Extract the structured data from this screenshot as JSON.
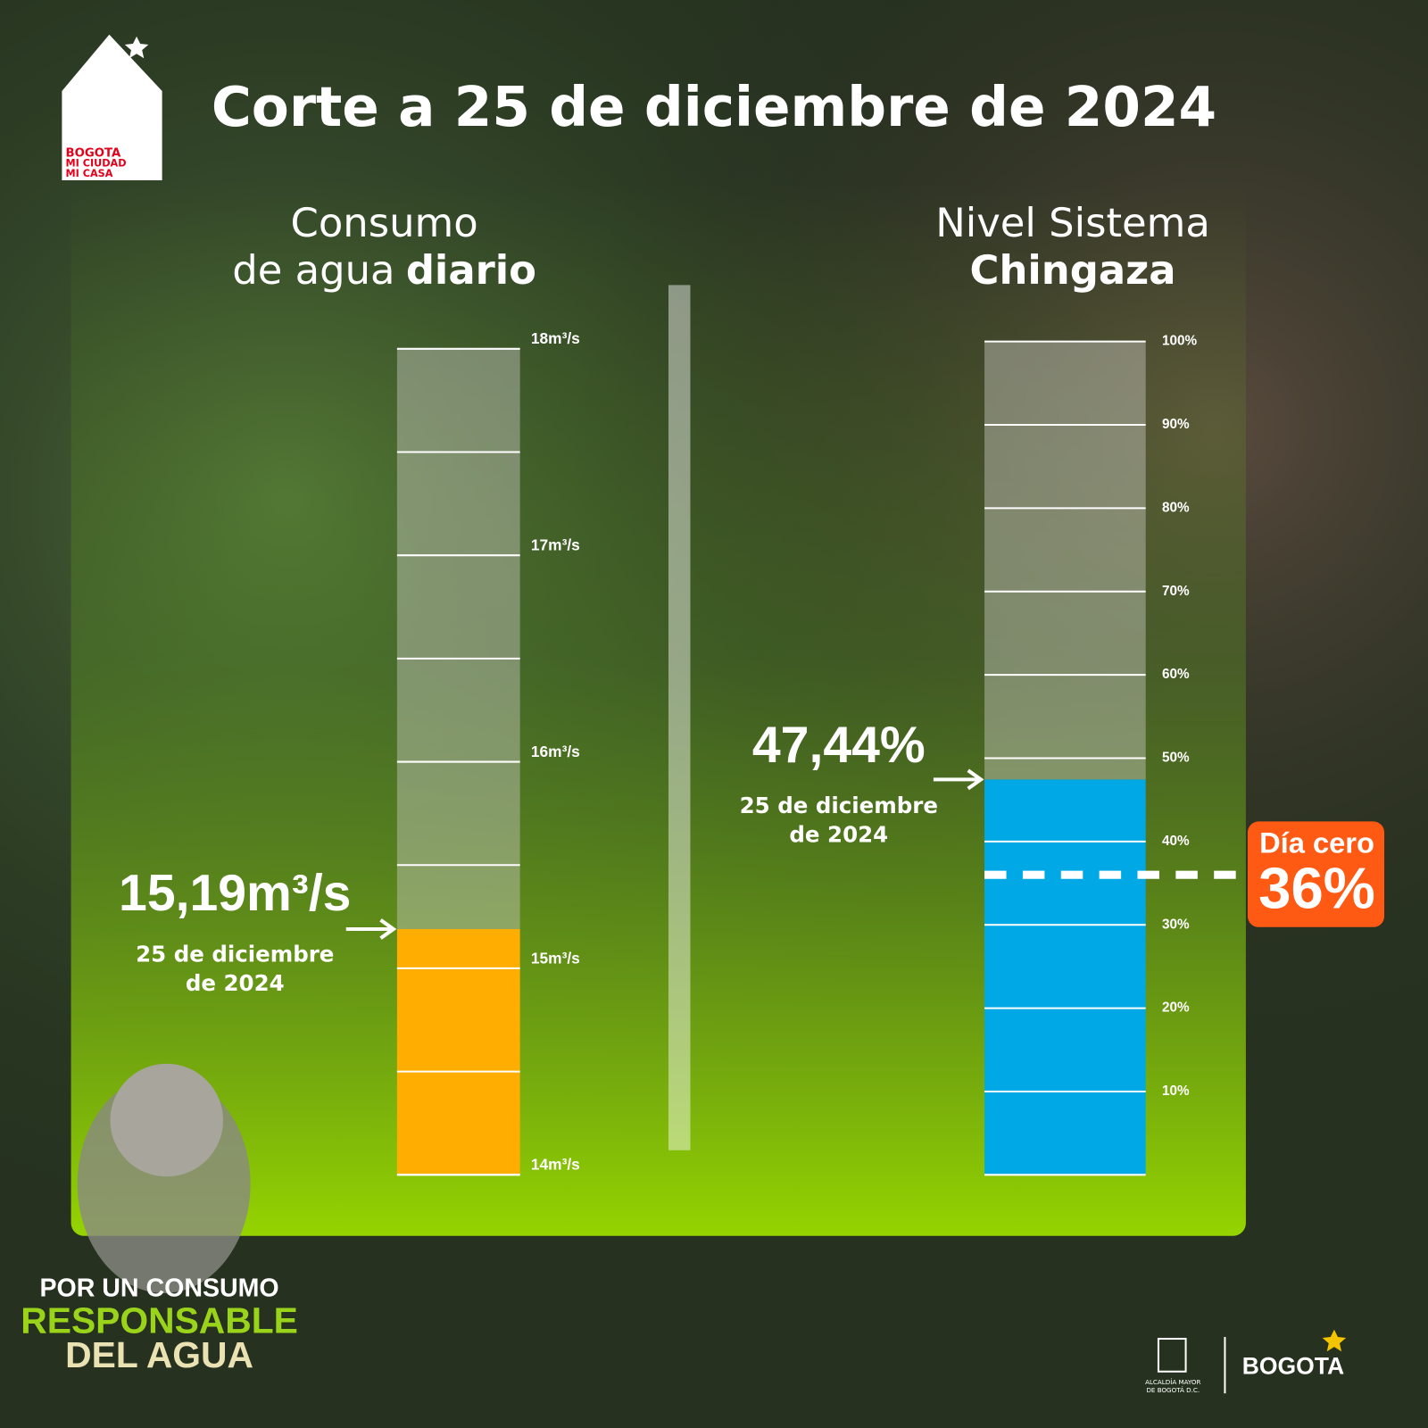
{
  "title": "Corte a 25 de diciembre de 2024",
  "logo": {
    "lines": [
      "BOGOTA",
      "MI CIUDAD",
      "MI CASA"
    ]
  },
  "chart_data": [
    {
      "type": "gauge",
      "title": [
        "Consumo",
        "de agua",
        "diario"
      ],
      "values": [
        15.19
      ],
      "value_labels": [
        "15,19m³/s"
      ],
      "annotation": [
        "25 de diciembre",
        "de 2024"
      ],
      "color": "#ffad00",
      "ylim": [
        14,
        18
      ],
      "yticks": [
        {
          "value": 14,
          "label": "14m³/s"
        },
        {
          "value": 15,
          "label": "15m³/s"
        },
        {
          "value": 16,
          "label": "16m³/s"
        },
        {
          "value": 17,
          "label": "17m³/s"
        },
        {
          "value": 18,
          "label": "18m³/s"
        }
      ],
      "minor_yticks": [
        14.5,
        15.5,
        16.5,
        17.5
      ]
    },
    {
      "type": "gauge",
      "title": [
        "Nivel Sistema",
        "Chingaza"
      ],
      "values": [
        47.44
      ],
      "value_labels": [
        "47,44%"
      ],
      "annotation": [
        "25 de diciembre",
        "de 2024"
      ],
      "color": "#00a9e6",
      "ylim": [
        0,
        100
      ],
      "yticks": [
        {
          "value": 10,
          "label": "10%"
        },
        {
          "value": 20,
          "label": "20%"
        },
        {
          "value": 30,
          "label": "30%"
        },
        {
          "value": 40,
          "label": "40%"
        },
        {
          "value": 50,
          "label": "50%"
        },
        {
          "value": 60,
          "label": "60%"
        },
        {
          "value": 70,
          "label": "70%"
        },
        {
          "value": 80,
          "label": "80%"
        },
        {
          "value": 90,
          "label": "90%"
        },
        {
          "value": 100,
          "label": "100%"
        }
      ],
      "threshold": {
        "label": "Día cero",
        "value": 36,
        "value_label": "36%",
        "color": "#ff5a14"
      }
    }
  ],
  "footer": {
    "slogan": [
      "POR UN CONSUMO",
      "RESPONSABLE",
      "DEL AGUA"
    ],
    "institution": [
      "ALCALDÍA MAYOR",
      "DE BOGOTÁ D.C."
    ],
    "brand": "BOGOTA"
  }
}
